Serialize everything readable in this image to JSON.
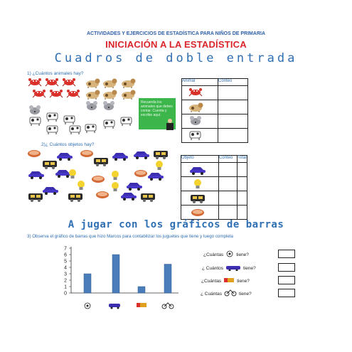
{
  "header": {
    "top": "ACTIVIDADES Y EJERCICIOS DE ESTADÍSTICA PARA NIÑOS DE PRIMARIA",
    "title": "INICIACIÓN A LA ESTADÍSTICA",
    "subtitle": "Cuadros de doble entrada"
  },
  "q1": {
    "label": "1) ¿Cuántos animales hay?",
    "table_headers": [
      "Animal",
      "Conteo"
    ],
    "note": "Recuerda los animales que debes contar. Cuenta y escribe aquí.",
    "icons": [
      "crab-icon",
      "dog-icon",
      "mouse-icon",
      "cow-icon"
    ]
  },
  "q2": {
    "label": "2)¿ Cuántos objetos hay?",
    "table_headers": [
      "Objeto",
      "Conteo",
      "Total"
    ],
    "icons": [
      "car-icon",
      "bulb-icon",
      "train-icon",
      "drum-icon"
    ]
  },
  "section2": {
    "title": "A jugar con los gráficos de barras",
    "q3": "3) Observa el gráfico de barras que hizo Marcos para contabilizar los juguetes que tiene y luego completa"
  },
  "questions": [
    {
      "pre": "¿Cuántas",
      "post": "tiene?",
      "icon": "ball-icon"
    },
    {
      "pre": "¿ Cuántos",
      "post": "tiene?",
      "icon": "car-icon"
    },
    {
      "pre": "¿Cuántas",
      "post": "tiene?",
      "icon": "truck-icon"
    },
    {
      "pre": "¿ Cuántas",
      "post": "tiene?",
      "icon": "bike-icon"
    }
  ],
  "chart_data": {
    "type": "bar",
    "categories": [
      "ball",
      "car",
      "truck",
      "bicycle"
    ],
    "values": [
      3,
      6,
      1,
      4.5
    ],
    "yticks": [
      "0",
      "1",
      "2",
      "3",
      "4",
      "5",
      "6",
      "7"
    ],
    "ylim": [
      0,
      7
    ],
    "bar_color": "#4a7ebb"
  }
}
